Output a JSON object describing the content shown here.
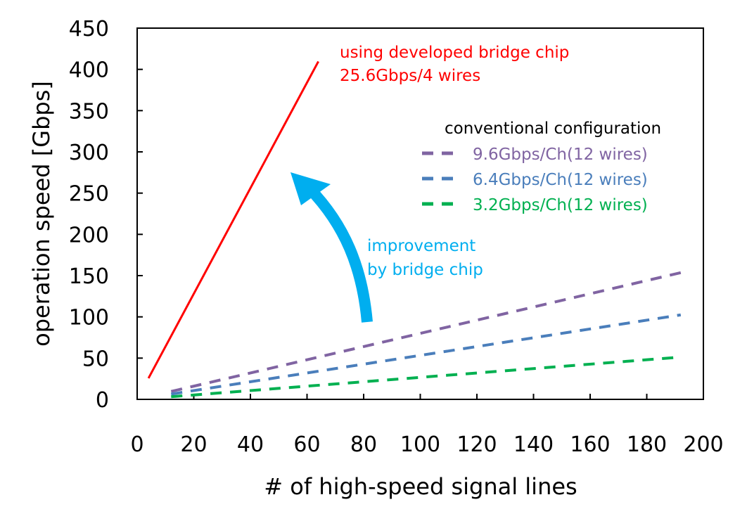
{
  "chart_data": {
    "type": "line",
    "xlabel": "# of high-speed signal lines",
    "ylabel": "operation speed [Gbps]",
    "xlim": [
      0,
      200
    ],
    "ylim": [
      0,
      450
    ],
    "xticks": [
      0,
      20,
      40,
      60,
      80,
      100,
      120,
      140,
      160,
      180,
      200
    ],
    "yticks": [
      0,
      50,
      100,
      150,
      200,
      250,
      300,
      350,
      400,
      450
    ],
    "grid": false,
    "legend_title": "conventional configuration",
    "legend_position": "top-right",
    "series": [
      {
        "name": "using developed bridge chip 25.6Gbps/4 wires",
        "style": "solid",
        "color": "#FF0000",
        "x": [
          4,
          64
        ],
        "y": [
          25.6,
          409.6
        ]
      },
      {
        "name": "9.6Gbps/Ch(12 wires)",
        "style": "dashed",
        "color": "#8064A2",
        "x": [
          12,
          192
        ],
        "y": [
          9.6,
          153.6
        ]
      },
      {
        "name": "6.4Gbps/Ch(12 wires)",
        "style": "dashed",
        "color": "#4A7EBB",
        "x": [
          12,
          192
        ],
        "y": [
          6.4,
          102.4
        ]
      },
      {
        "name": "3.2Gbps/Ch(12 wires)",
        "style": "dashed",
        "color": "#00B050",
        "x": [
          12,
          192
        ],
        "y": [
          3.2,
          51.2
        ]
      }
    ],
    "annotations": {
      "red_label_line1": "using developed bridge chip",
      "red_label_line2": "25.6Gbps/4 wires",
      "arrow_label_line1": "improvement",
      "arrow_label_line2": "by bridge chip",
      "arrow_color": "#00AEEF"
    }
  }
}
